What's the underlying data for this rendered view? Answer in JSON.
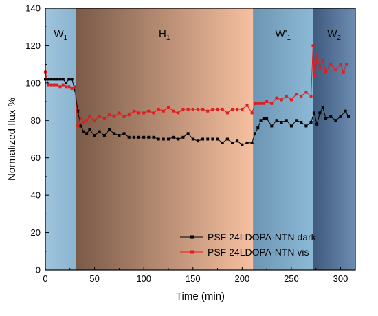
{
  "chart_data": {
    "type": "line",
    "xlabel": "Time (min)",
    "ylabel": "Normalized flux %",
    "xlim": [
      0,
      315
    ],
    "ylim": [
      0,
      140
    ],
    "xticks": [
      0,
      50,
      100,
      150,
      200,
      250,
      300
    ],
    "yticks": [
      0,
      20,
      40,
      60,
      80,
      100,
      120,
      140
    ],
    "xtick_labels": [
      "0",
      "50",
      "100",
      "150",
      "200",
      "250",
      "300"
    ],
    "ytick_labels": [
      "0",
      "20",
      "40",
      "60",
      "80",
      "100",
      "120",
      "140"
    ],
    "grid": false,
    "legend_position": "bottom-right",
    "phases": [
      {
        "main": "W",
        "sub": "1",
        "x0": 0,
        "x1": 31,
        "color_start": "#9fc4dc",
        "color_end": "#8ab4d0"
      },
      {
        "main": "H",
        "sub": "1",
        "x0": 31,
        "x1": 211,
        "color_start": "#7a5a48",
        "color_end": "#f6c0a0"
      },
      {
        "main": "W'",
        "sub": "1",
        "x0": 211,
        "x1": 272,
        "color_start": "#6d95b4",
        "color_end": "#8cbad6"
      },
      {
        "main": "W",
        "sub": "2",
        "x0": 272,
        "x1": 315,
        "color_start": "#3e5a7e",
        "color_end": "#6d8db0"
      }
    ],
    "series": [
      {
        "name": "PSF 24LDOPA-NTN dark",
        "color": "#000000",
        "x": [
          0,
          3,
          6,
          9,
          12,
          15,
          18,
          21,
          24,
          27,
          30,
          33,
          36,
          39,
          42,
          45,
          50,
          55,
          60,
          65,
          70,
          75,
          80,
          85,
          90,
          95,
          100,
          105,
          110,
          115,
          120,
          125,
          130,
          135,
          140,
          145,
          150,
          155,
          160,
          165,
          170,
          175,
          180,
          185,
          190,
          195,
          200,
          205,
          210,
          213,
          216,
          219,
          222,
          225,
          230,
          235,
          240,
          245,
          250,
          255,
          260,
          265,
          270,
          273,
          276,
          279,
          282,
          285,
          290,
          295,
          300,
          305,
          308
        ],
        "y": [
          102,
          102,
          102,
          102,
          102,
          102,
          102,
          100,
          102,
          102,
          96,
          85,
          77,
          74,
          73,
          75,
          72,
          74,
          72,
          75,
          73,
          72,
          73,
          71,
          71,
          71,
          71,
          71,
          71,
          70,
          70,
          70,
          71,
          70,
          71,
          73,
          70,
          69,
          70,
          70,
          70,
          70,
          68,
          70,
          68,
          69,
          67,
          68,
          68,
          73,
          76,
          80,
          81,
          81,
          77,
          80,
          79,
          80,
          77,
          80,
          79,
          77,
          79,
          84,
          78,
          84,
          87,
          81,
          82,
          80,
          82,
          85,
          82
        ]
      },
      {
        "name": "PSF 24LDOPA-NTN vis",
        "color": "#e41a1c",
        "x": [
          0,
          3,
          6,
          9,
          12,
          15,
          18,
          21,
          24,
          27,
          30,
          33,
          36,
          39,
          42,
          45,
          50,
          55,
          60,
          65,
          70,
          75,
          80,
          85,
          90,
          95,
          100,
          105,
          110,
          115,
          120,
          125,
          130,
          135,
          140,
          145,
          150,
          155,
          160,
          165,
          170,
          175,
          180,
          185,
          190,
          195,
          200,
          205,
          210,
          213,
          216,
          219,
          222,
          225,
          230,
          235,
          240,
          245,
          250,
          255,
          260,
          265,
          270,
          272,
          274,
          276,
          279,
          282,
          285,
          290,
          295,
          300,
          303,
          306
        ],
        "y": [
          106,
          99,
          99,
          99,
          99,
          98,
          99,
          98,
          98,
          97,
          98,
          77,
          81,
          79,
          80,
          82,
          80,
          82,
          81,
          83,
          82,
          84,
          82,
          83,
          85,
          84,
          84,
          85,
          84,
          86,
          85,
          87,
          85,
          84,
          86,
          86,
          86,
          86,
          86,
          85,
          86,
          86,
          86,
          84,
          86,
          86,
          86,
          88,
          84,
          89,
          89,
          89,
          89,
          90,
          89,
          92,
          91,
          93,
          91,
          94,
          93,
          95,
          93,
          120,
          104,
          115,
          108,
          112,
          106,
          110,
          107,
          110,
          106,
          110
        ]
      }
    ]
  }
}
